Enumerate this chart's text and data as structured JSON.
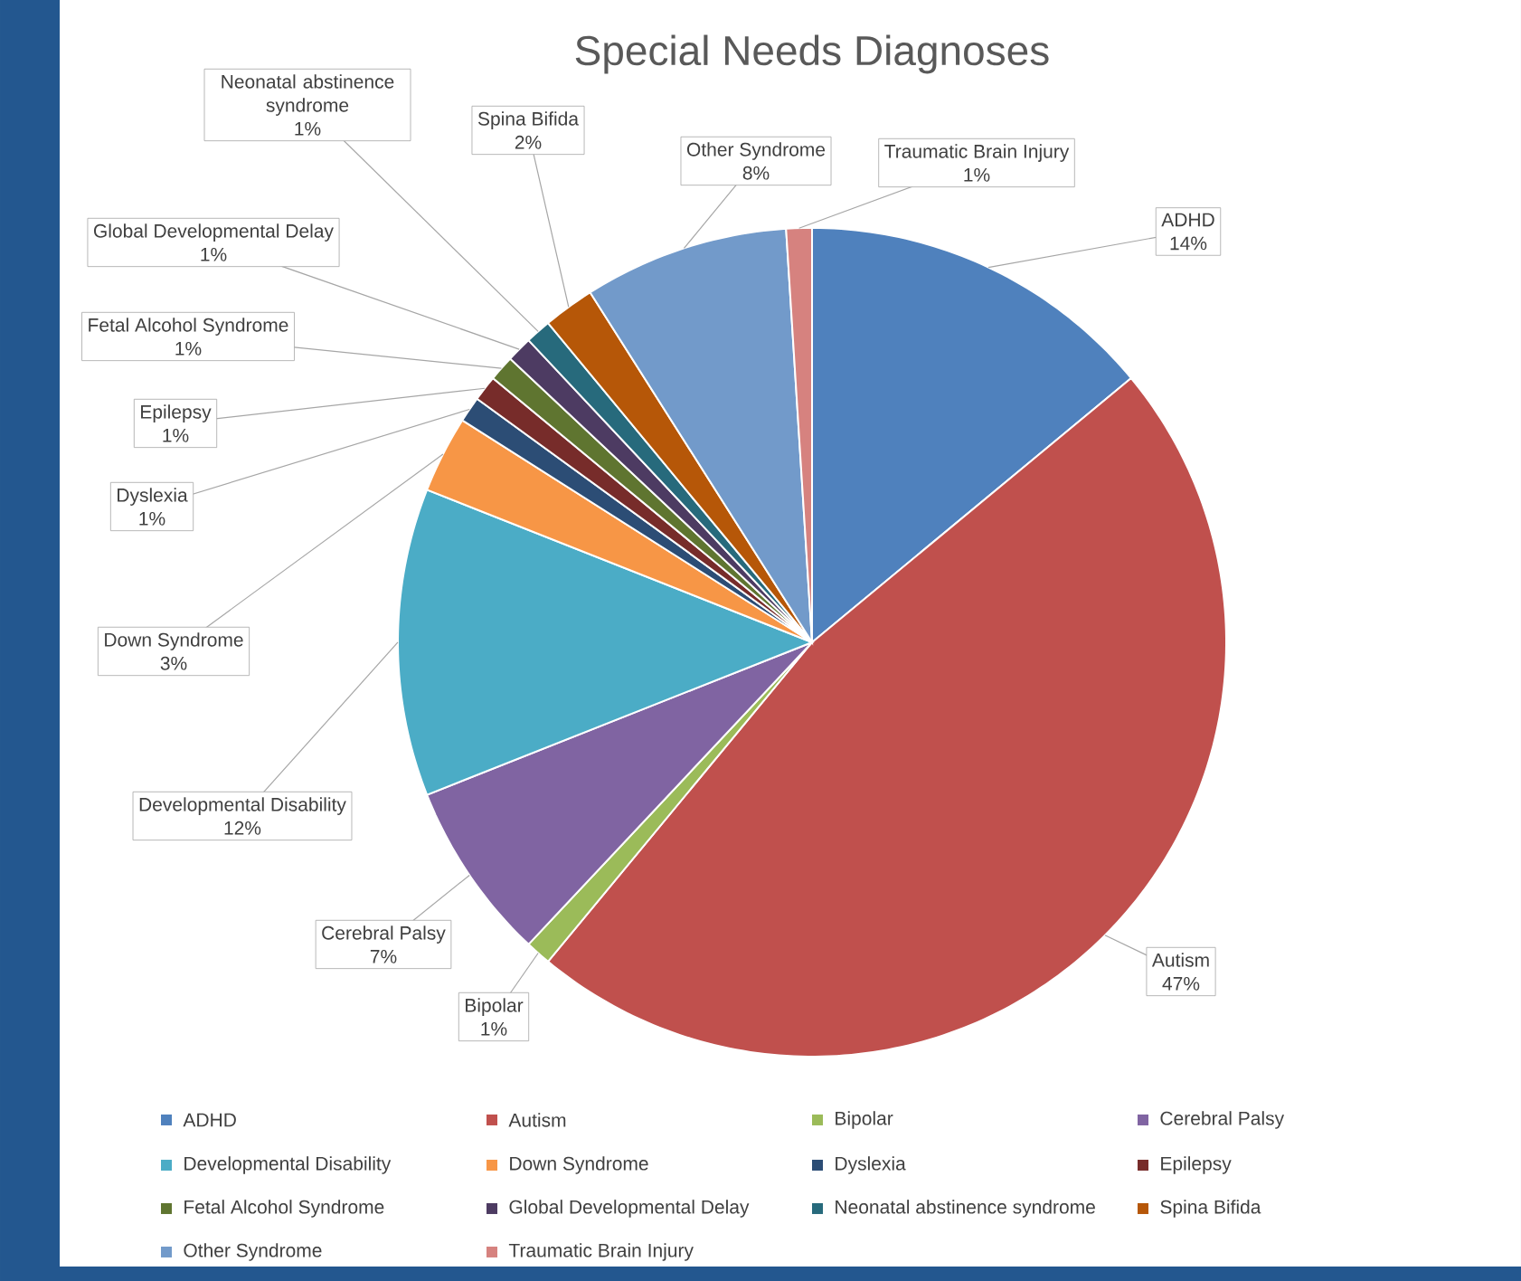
{
  "chart_data": {
    "type": "pie",
    "title": "Special Needs Diagnoses",
    "categories": [
      "ADHD",
      "Autism",
      "Bipolar",
      "Cerebral Palsy",
      "Developmental Disability",
      "Down Syndrome",
      "Dyslexia",
      "Epilepsy",
      "Fetal Alcohol Syndrome",
      "Global Developmental Delay",
      "Neonatal abstinence syndrome",
      "Spina Bifida",
      "Other Syndrome",
      "Traumatic Brain Injury"
    ],
    "values": [
      14,
      47,
      1,
      7,
      12,
      3,
      1,
      1,
      1,
      1,
      1,
      2,
      8,
      1
    ],
    "value_labels": [
      "14%",
      "47%",
      "1%",
      "7%",
      "12%",
      "3%",
      "1%",
      "1%",
      "1%",
      "1%",
      "1%",
      "2%",
      "8%",
      "1%"
    ],
    "colors": [
      "#4f81bd",
      "#c0504d",
      "#9bbb59",
      "#8064a2",
      "#4bacc6",
      "#f79646",
      "#2c4d75",
      "#772c2a",
      "#5f7530",
      "#4d3b62",
      "#276a7c",
      "#b65708",
      "#729aca",
      "#d6827f"
    ],
    "legend": "bottom"
  }
}
